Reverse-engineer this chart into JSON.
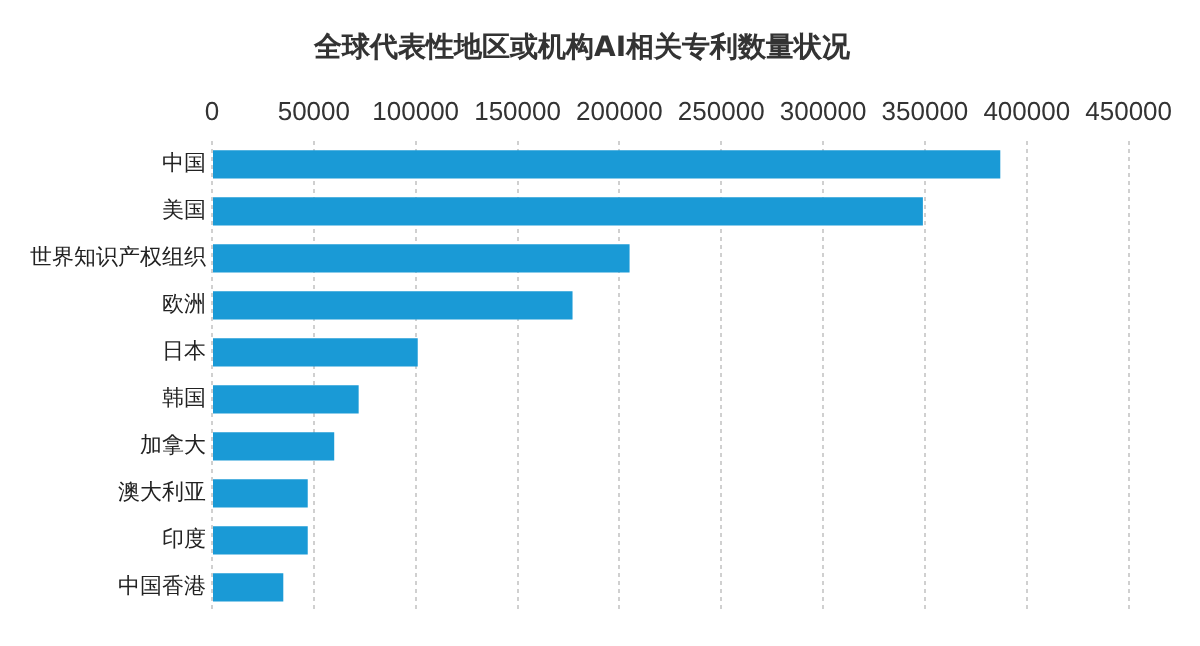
{
  "chart_data": {
    "type": "bar",
    "orientation": "horizontal",
    "title": "全球代表性地区或机构AI相关专利数量状况",
    "categories": [
      "中国",
      "美国",
      "世界知识产权组织",
      "欧洲",
      "日本",
      "韩国",
      "加拿大",
      "澳大利亚",
      "印度",
      "中国香港"
    ],
    "values": [
      387000,
      349000,
      205000,
      177000,
      101000,
      72000,
      60000,
      47000,
      47000,
      35000
    ],
    "color": "#1a9ad6",
    "xlim": [
      0,
      450000
    ],
    "xticks": [
      0,
      50000,
      100000,
      150000,
      200000,
      250000,
      300000,
      350000,
      400000,
      450000
    ],
    "grid": "x",
    "legend": false
  }
}
